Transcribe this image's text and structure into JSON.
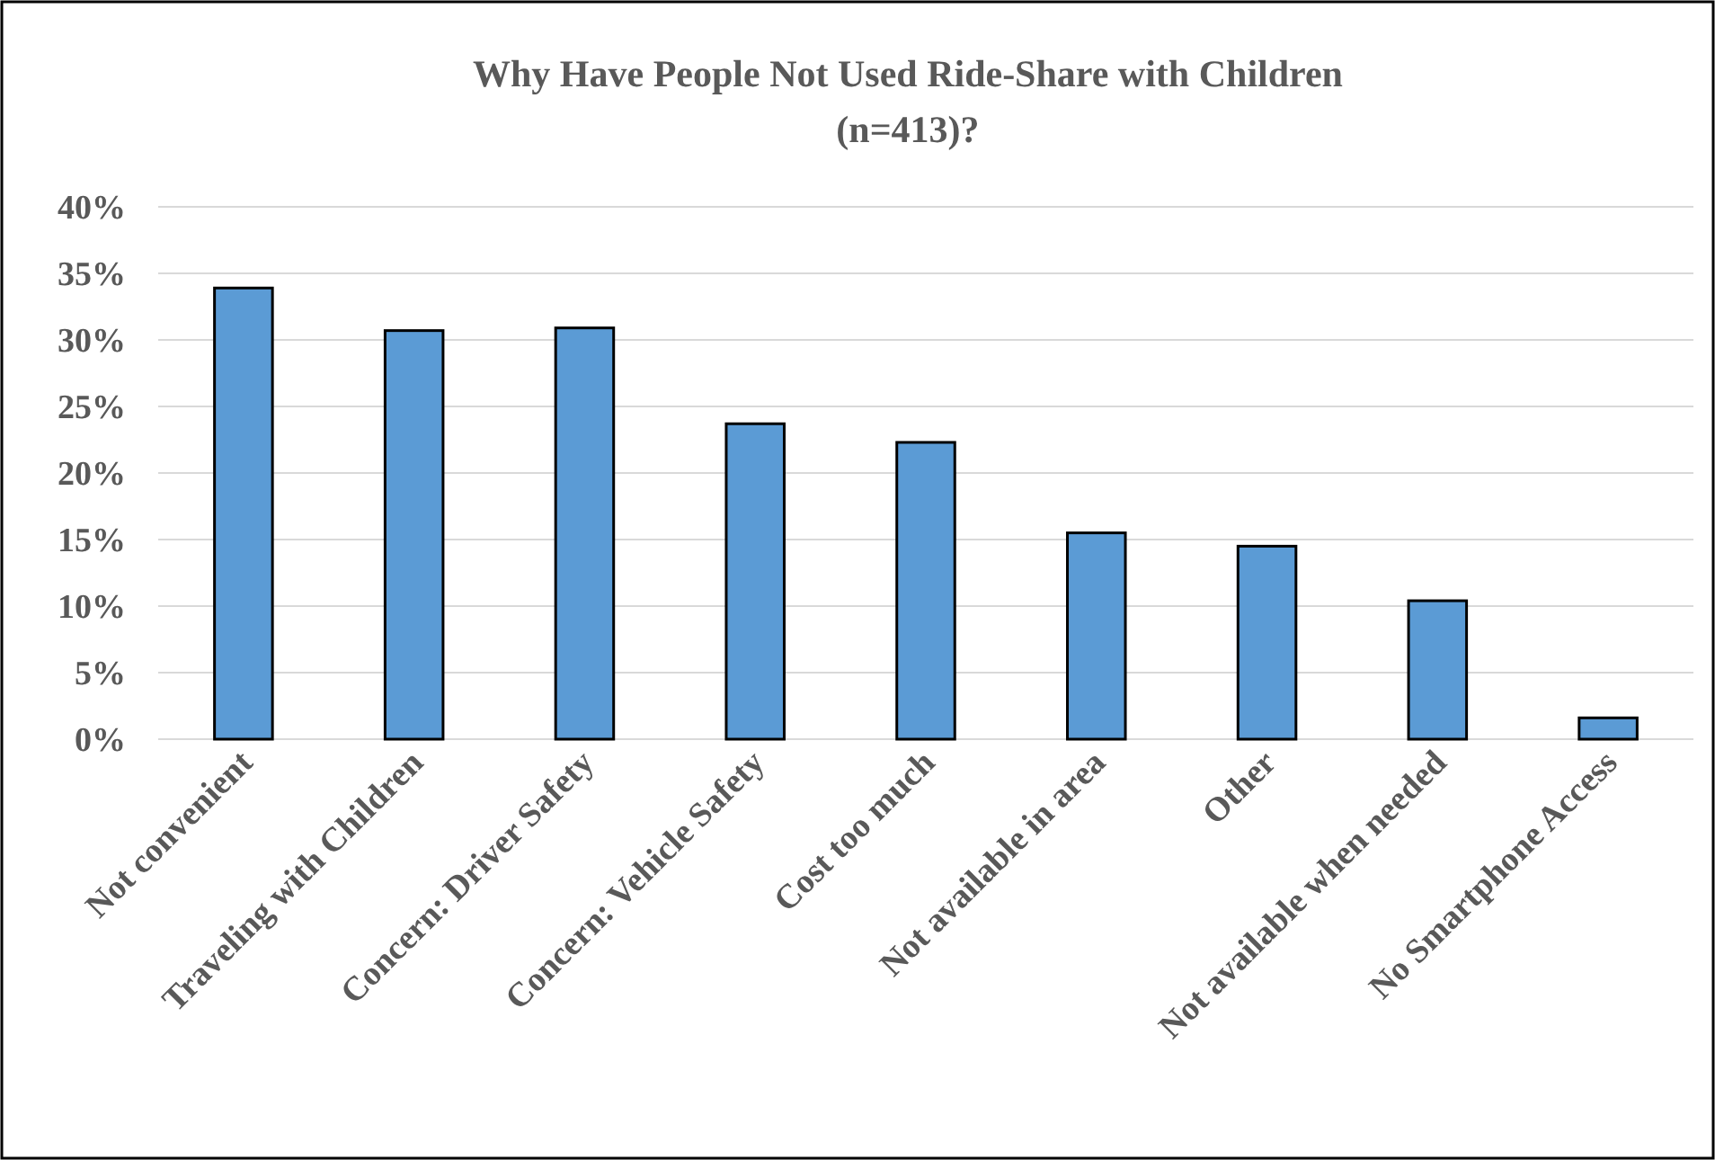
{
  "chart_data": {
    "type": "bar",
    "title": "Why Have People Not Used Ride-Share with Children\n(n=413)?",
    "categories": [
      "Not convenient",
      "Traveling with Children",
      "Concern: Driver Safety",
      "Concern: Vehicle Safety",
      "Cost too much",
      "Not available in area",
      "Other",
      "Not available when needed",
      "No Smartphone Access"
    ],
    "values": [
      33.9,
      30.7,
      30.9,
      23.7,
      22.3,
      15.5,
      14.5,
      10.4,
      1.6
    ],
    "color": "#5b9bd5",
    "ylim": [
      0,
      40
    ],
    "yticks": [
      {
        "value": 0,
        "label": "0%"
      },
      {
        "value": 5,
        "label": "5%"
      },
      {
        "value": 10,
        "label": "10%"
      },
      {
        "value": 15,
        "label": "15%"
      },
      {
        "value": 20,
        "label": "20%"
      },
      {
        "value": 25,
        "label": "25%"
      },
      {
        "value": 30,
        "label": "30%"
      },
      {
        "value": 35,
        "label": "35%"
      },
      {
        "value": 40,
        "label": "40%"
      }
    ],
    "grid": "y"
  }
}
